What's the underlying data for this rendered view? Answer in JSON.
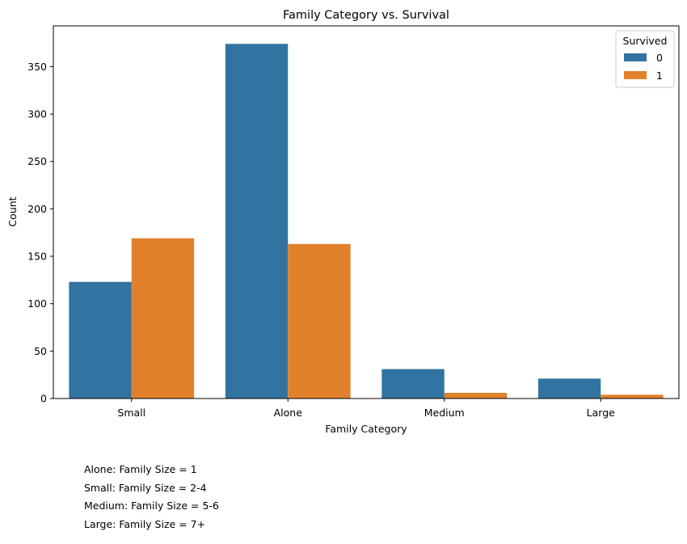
{
  "chart_data": {
    "type": "bar",
    "title": "Family Category vs. Survival",
    "xlabel": "Family Category",
    "ylabel": "Count",
    "categories": [
      "Small",
      "Alone",
      "Medium",
      "Large"
    ],
    "series": [
      {
        "name": "0",
        "values": [
          123,
          374,
          31,
          21
        ],
        "color": "#3274a1"
      },
      {
        "name": "1",
        "values": [
          169,
          163,
          6,
          4
        ],
        "color": "#e1812c"
      }
    ],
    "ylim": [
      0,
      393
    ],
    "yticks": [
      0,
      50,
      100,
      150,
      200,
      250,
      300,
      350
    ],
    "legend": {
      "title": "Survived",
      "placement": "top-right"
    },
    "grid": false
  },
  "notes": [
    "Alone: Family Size = 1",
    "Small: Family Size = 2-4",
    "Medium: Family Size = 5-6",
    "Large: Family Size = 7+"
  ]
}
